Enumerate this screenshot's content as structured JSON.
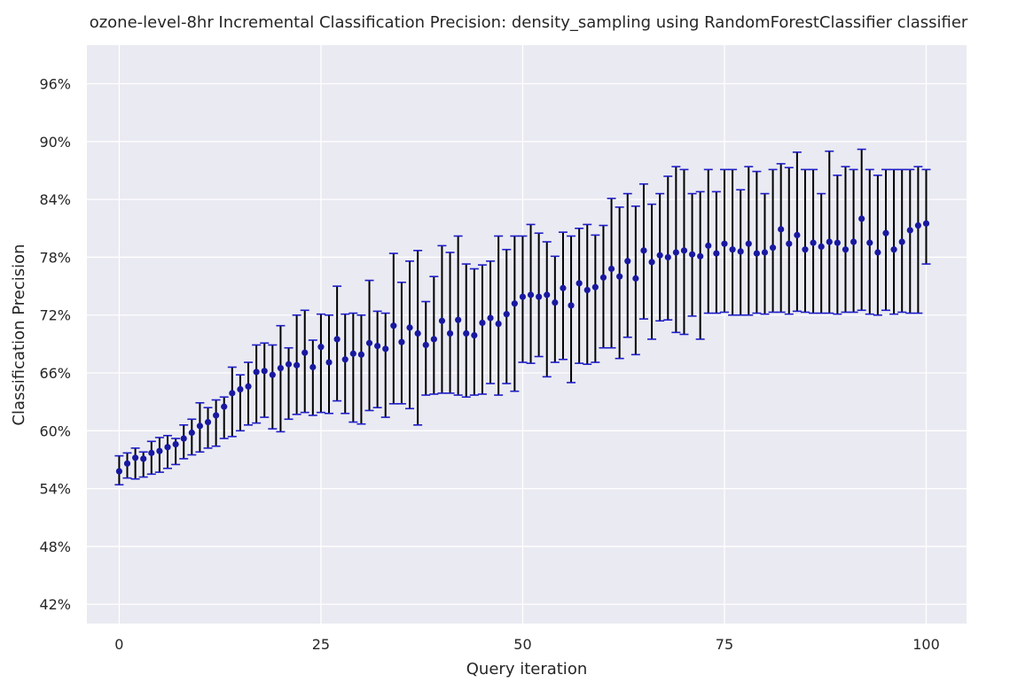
{
  "chart_data": {
    "type": "scatter",
    "title": "ozone-level-8hr Incremental Classification Precision: density_sampling using RandomForestClassifier classifier",
    "xlabel": "Query iteration",
    "ylabel": "Classification Precision",
    "xlim": [
      -4,
      105
    ],
    "ylim": [
      40,
      100
    ],
    "xticks": [
      0,
      25,
      50,
      75,
      100
    ],
    "xtick_labels": [
      "0",
      "25",
      "50",
      "75",
      "100"
    ],
    "yticks": [
      42,
      48,
      54,
      60,
      66,
      72,
      78,
      84,
      90,
      96
    ],
    "ytick_labels": [
      "42%",
      "48%",
      "54%",
      "60%",
      "66%",
      "72%",
      "78%",
      "84%",
      "90%",
      "96%"
    ],
    "grid": true,
    "colors": {
      "background": "#eaeaf2",
      "grid": "#ffffff",
      "marker": "#1818a0",
      "errorbar": "#000000",
      "cap": "#1d1dc8"
    },
    "series": [
      {
        "x": [
          0,
          1,
          2,
          3,
          4,
          5,
          6,
          7,
          8,
          9,
          10,
          11,
          12,
          13,
          14,
          15,
          16,
          17,
          18,
          19,
          20,
          21,
          22,
          23,
          24,
          25,
          26,
          27,
          28,
          29,
          30,
          31,
          32,
          33,
          34,
          35,
          36,
          37,
          38,
          39,
          40,
          41,
          42,
          43,
          44,
          45,
          46,
          47,
          48,
          49,
          50,
          51,
          52,
          53,
          54,
          55,
          56,
          57,
          58,
          59,
          60,
          61,
          62,
          63,
          64,
          65,
          66,
          67,
          68,
          69,
          70,
          71,
          72,
          73,
          74,
          75,
          76,
          77,
          78,
          79,
          80,
          81,
          82,
          83,
          84,
          85,
          86,
          87,
          88,
          89,
          90,
          91,
          92,
          93,
          94,
          95,
          96,
          97,
          98,
          99,
          100
        ],
        "y": [
          55.8,
          56.6,
          57.2,
          57.1,
          57.7,
          57.9,
          58.3,
          58.6,
          59.2,
          59.8,
          60.5,
          60.9,
          61.6,
          62.5,
          63.9,
          64.3,
          64.6,
          66.1,
          66.2,
          65.8,
          66.5,
          66.9,
          66.8,
          68.1,
          66.6,
          68.7,
          67.1,
          69.5,
          67.4,
          68.0,
          67.9,
          69.1,
          68.8,
          68.5,
          70.9,
          69.2,
          70.7,
          70.1,
          68.9,
          69.5,
          71.4,
          70.1,
          71.5,
          70.1,
          69.9,
          71.2,
          71.7,
          71.1,
          72.1,
          73.2,
          73.9,
          74.1,
          73.9,
          74.1,
          73.3,
          74.8,
          73.0,
          75.3,
          74.6,
          74.9,
          75.9,
          76.8,
          76.0,
          77.6,
          75.8,
          78.7,
          77.5,
          78.2,
          78.0,
          78.5,
          78.7,
          78.3,
          78.1,
          79.2,
          78.4,
          79.4,
          78.8,
          78.6,
          79.4,
          78.4,
          78.5,
          79.0,
          80.9,
          79.4,
          80.3,
          78.8,
          79.5,
          79.1,
          79.6,
          79.5,
          78.8,
          79.6,
          82.0,
          79.5,
          78.5,
          80.5,
          78.8,
          79.6,
          80.8,
          81.3,
          81.5
        ],
        "y_lower": [
          54.4,
          55.1,
          55.0,
          55.2,
          55.5,
          55.7,
          56.1,
          56.5,
          57.1,
          57.5,
          57.8,
          58.2,
          58.4,
          59.2,
          59.4,
          60.0,
          60.6,
          60.8,
          61.4,
          60.2,
          59.9,
          61.2,
          61.7,
          61.9,
          61.6,
          61.9,
          61.8,
          63.1,
          61.8,
          60.9,
          60.7,
          62.1,
          62.4,
          61.4,
          62.8,
          62.8,
          62.3,
          60.6,
          63.7,
          63.8,
          63.9,
          63.9,
          63.7,
          63.5,
          63.7,
          63.8,
          64.9,
          63.7,
          64.9,
          64.1,
          67.1,
          67.0,
          67.7,
          65.6,
          67.1,
          67.4,
          65.0,
          67.0,
          66.9,
          67.1,
          68.6,
          68.6,
          67.5,
          69.7,
          67.9,
          71.6,
          69.5,
          71.4,
          71.5,
          70.2,
          70.0,
          71.9,
          69.5,
          72.2,
          72.2,
          72.3,
          72.0,
          72.0,
          72.0,
          72.2,
          72.1,
          72.3,
          72.3,
          72.1,
          72.4,
          72.3,
          72.2,
          72.2,
          72.2,
          72.1,
          72.3,
          72.3,
          72.5,
          72.1,
          72.0,
          72.5,
          72.1,
          72.3,
          72.2,
          72.2,
          77.3
        ],
        "y_upper": [
          57.4,
          57.7,
          58.2,
          57.8,
          58.9,
          59.3,
          59.5,
          59.2,
          60.6,
          61.2,
          62.9,
          62.4,
          63.2,
          63.5,
          66.6,
          65.8,
          67.1,
          68.9,
          69.1,
          68.9,
          70.9,
          68.6,
          72.0,
          72.5,
          69.4,
          72.1,
          72.0,
          75.0,
          72.1,
          72.2,
          72.0,
          75.6,
          72.4,
          72.2,
          78.4,
          75.4,
          77.6,
          78.7,
          73.4,
          76.0,
          79.2,
          78.5,
          80.2,
          77.3,
          76.8,
          77.2,
          77.6,
          80.2,
          78.8,
          80.2,
          80.2,
          81.4,
          80.5,
          79.6,
          78.1,
          80.6,
          80.2,
          81.0,
          81.4,
          80.3,
          81.3,
          84.1,
          83.2,
          84.6,
          83.3,
          85.6,
          83.5,
          84.6,
          86.4,
          87.4,
          87.1,
          84.6,
          84.8,
          87.1,
          84.8,
          87.1,
          87.1,
          85.0,
          87.4,
          86.9,
          84.6,
          87.1,
          87.7,
          87.3,
          88.9,
          87.1,
          87.1,
          84.6,
          89.0,
          86.5,
          87.4,
          87.1,
          89.2,
          87.1,
          86.5,
          87.1,
          87.1,
          87.1,
          87.1,
          87.4,
          87.1
        ]
      }
    ]
  }
}
